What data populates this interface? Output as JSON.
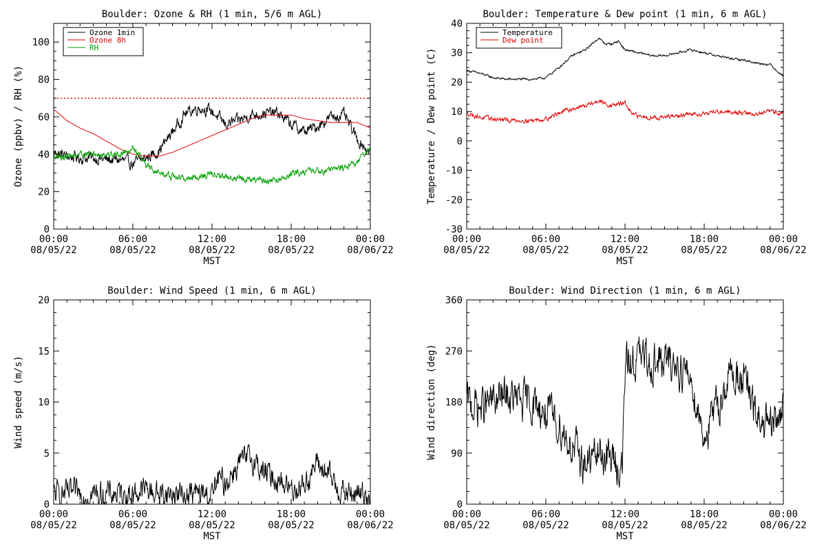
{
  "chart_data": [
    {
      "type": "line",
      "title": "Boulder: Ozone & RH (1 min, 5/6 m AGL)",
      "xlabel": "MST",
      "ylabel": "Ozone (ppbv) / RH (%)",
      "xticks": [
        {
          "time": "00:00",
          "date": "08/05/22"
        },
        {
          "time": "06:00",
          "date": "08/05/22"
        },
        {
          "time": "12:00",
          "date": "08/05/22"
        },
        {
          "time": "18:00",
          "date": "08/05/22"
        },
        {
          "time": "00:00",
          "date": "08/06/22"
        }
      ],
      "xlim": [
        0,
        24
      ],
      "ylim": [
        0,
        110
      ],
      "yticks": [
        0,
        20,
        40,
        60,
        80,
        100
      ],
      "reference_line": {
        "y": 70,
        "color": "#e00000",
        "style": "dotted"
      },
      "legend": {
        "placement": "top-left",
        "entries": [
          {
            "name": "Ozone 1min",
            "color": "#000000"
          },
          {
            "name": "Ozone 8h",
            "color": "#e00000"
          },
          {
            "name": "RH",
            "color": "#00a000"
          }
        ]
      },
      "series": [
        {
          "name": "Ozone 1min",
          "color": "#000000",
          "noise": 2.5,
          "x": [
            0,
            1,
            2,
            3,
            4,
            5,
            6,
            7,
            8,
            9,
            10,
            11,
            12,
            13,
            14,
            15,
            16,
            17,
            18,
            19,
            20,
            21,
            22,
            23,
            24
          ],
          "values": [
            41,
            39,
            38,
            38,
            37,
            37,
            35,
            38,
            42,
            52,
            62,
            65,
            63,
            56,
            58,
            61,
            62,
            62,
            56,
            52,
            55,
            60,
            61,
            48,
            41
          ]
        },
        {
          "name": "Ozone 8h",
          "color": "#e00000",
          "noise": 0,
          "x": [
            0,
            1,
            2,
            3,
            4,
            5,
            6,
            7,
            8,
            9,
            10,
            11,
            12,
            13,
            14,
            15,
            16,
            17,
            18,
            19,
            20,
            21,
            22,
            23,
            24
          ],
          "values": [
            64,
            58,
            54,
            51,
            47,
            43,
            40,
            39,
            39,
            41,
            44,
            47,
            50,
            53,
            56,
            59,
            61,
            61,
            61,
            59,
            58,
            57,
            57,
            57,
            54
          ]
        },
        {
          "name": "RH",
          "color": "#00a000",
          "noise": 1.5,
          "x": [
            0,
            1,
            2,
            3,
            4,
            5,
            6,
            7,
            8,
            9,
            10,
            11,
            12,
            13,
            14,
            15,
            16,
            17,
            18,
            19,
            20,
            21,
            22,
            23,
            24
          ],
          "values": [
            38,
            39,
            40,
            40,
            40,
            40,
            44,
            34,
            30,
            28,
            27,
            28,
            29,
            28,
            27,
            26,
            26,
            26,
            29,
            31,
            31,
            32,
            33,
            36,
            43
          ]
        }
      ]
    },
    {
      "type": "line",
      "title": "Boulder: Temperature & Dew point (1 min, 6 m AGL)",
      "xlabel": "MST",
      "ylabel": "Temperature / Dew point (C)",
      "xticks": [
        {
          "time": "00:00",
          "date": "08/05/22"
        },
        {
          "time": "06:00",
          "date": "08/05/22"
        },
        {
          "time": "12:00",
          "date": "08/05/22"
        },
        {
          "time": "18:00",
          "date": "08/05/22"
        },
        {
          "time": "00:00",
          "date": "08/06/22"
        }
      ],
      "xlim": [
        0,
        24
      ],
      "ylim": [
        -30,
        40
      ],
      "yticks": [
        -30,
        -20,
        -10,
        0,
        10,
        20,
        30,
        40
      ],
      "legend": {
        "placement": "top-left",
        "entries": [
          {
            "name": "Temperature",
            "color": "#000000"
          },
          {
            "name": "Dew point",
            "color": "#e00000"
          }
        ]
      },
      "series": [
        {
          "name": "Temperature",
          "color": "#000000",
          "noise": 0.3,
          "x": [
            0,
            1,
            2,
            3,
            4,
            5,
            6,
            7,
            8,
            9,
            10,
            10.5,
            11,
            11.5,
            12,
            13,
            14,
            15,
            16,
            17,
            18,
            19,
            20,
            21,
            22,
            23,
            24
          ],
          "values": [
            24,
            23,
            21.5,
            21,
            21,
            21,
            21.5,
            25,
            29,
            31,
            35,
            33,
            33,
            34,
            31,
            30,
            29,
            29,
            30,
            31,
            30,
            29,
            28,
            27.5,
            26.5,
            26,
            22
          ]
        },
        {
          "name": "Dew point",
          "color": "#e00000",
          "noise": 0.6,
          "x": [
            0,
            1,
            2,
            3,
            4,
            5,
            6,
            7,
            8,
            9,
            10,
            11,
            12,
            12.5,
            13,
            14,
            15,
            16,
            17,
            18,
            19,
            20,
            21,
            22,
            23,
            24
          ],
          "values": [
            9.5,
            8,
            7.5,
            7,
            7,
            7,
            7.5,
            9.5,
            11,
            12,
            13.5,
            12,
            13,
            9,
            8.5,
            8,
            8,
            8.5,
            9,
            9.5,
            10,
            10,
            9.5,
            9,
            10,
            9.5
          ]
        }
      ]
    },
    {
      "type": "line",
      "title": "Boulder: Wind Speed (1 min, 6 m AGL)",
      "xlabel": "MST",
      "ylabel": "Wind speed (m/s)",
      "xticks": [
        {
          "time": "00:00",
          "date": "08/05/22"
        },
        {
          "time": "06:00",
          "date": "08/05/22"
        },
        {
          "time": "12:00",
          "date": "08/05/22"
        },
        {
          "time": "18:00",
          "date": "08/05/22"
        },
        {
          "time": "00:00",
          "date": "08/06/22"
        }
      ],
      "xlim": [
        0,
        24
      ],
      "ylim": [
        0,
        20
      ],
      "yticks": [
        0,
        5,
        10,
        15,
        20
      ],
      "series": [
        {
          "name": "",
          "color": "#000000",
          "noise": 1.0,
          "min": 0,
          "x": [
            0,
            1,
            2,
            3,
            4,
            5,
            6,
            7,
            8,
            9,
            10,
            11,
            12,
            12.5,
            13,
            14,
            15,
            16,
            17,
            18,
            19,
            20,
            21,
            22,
            23,
            24
          ],
          "values": [
            1,
            1,
            1,
            1,
            1,
            1,
            1,
            1.5,
            1,
            1,
            1,
            1,
            0.8,
            2.5,
            2,
            4,
            4.5,
            3,
            2.5,
            1.5,
            2,
            4,
            2.5,
            1,
            1,
            1
          ]
        }
      ]
    },
    {
      "type": "line",
      "title": "Boulder: Wind Direction (1 min, 6 m AGL)",
      "xlabel": "MST",
      "ylabel": "Wind direction (deg)",
      "xticks": [
        {
          "time": "00:00",
          "date": "08/05/22"
        },
        {
          "time": "06:00",
          "date": "08/05/22"
        },
        {
          "time": "12:00",
          "date": "08/05/22"
        },
        {
          "time": "18:00",
          "date": "08/05/22"
        },
        {
          "time": "00:00",
          "date": "08/06/22"
        }
      ],
      "xlim": [
        0,
        24
      ],
      "ylim": [
        0,
        360
      ],
      "yticks": [
        0,
        90,
        180,
        270,
        360
      ],
      "series": [
        {
          "name": "",
          "color": "#000000",
          "noise": 28,
          "min": 0,
          "max": 360,
          "x": [
            0,
            1,
            2,
            3,
            4,
            5,
            6,
            7,
            8,
            9,
            10,
            11,
            11.8,
            12,
            13,
            14,
            15,
            16,
            17,
            18,
            19,
            20,
            21,
            22,
            23,
            24
          ],
          "values": [
            180,
            170,
            180,
            190,
            180,
            180,
            160,
            140,
            100,
            70,
            90,
            80,
            60,
            240,
            260,
            250,
            250,
            245,
            220,
            120,
            170,
            230,
            220,
            150,
            130,
            170
          ]
        }
      ]
    }
  ]
}
